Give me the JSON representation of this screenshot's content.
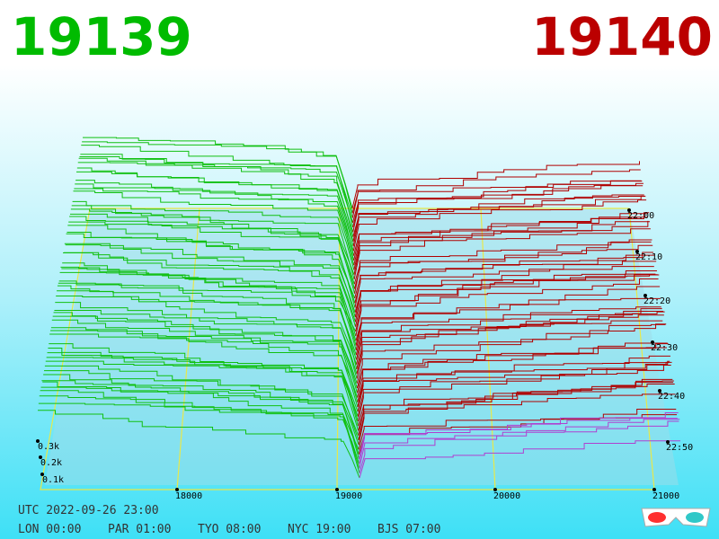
{
  "header": {
    "bid": "19139",
    "ask": "19140"
  },
  "axis": {
    "price_labels": [
      "18000",
      "19000",
      "20000",
      "21000"
    ],
    "depth_labels": [
      "0.3k",
      "0.2k",
      "0.1k"
    ],
    "time_labels": [
      "22:00",
      "22:10",
      "22:20",
      "22:30",
      "22:40",
      "22:50"
    ]
  },
  "footer": {
    "utc": "UTC 2022-09-26 23:00",
    "cities": [
      "LON 00:00",
      "PAR 01:00",
      "TYO 08:00",
      "NYC 19:00",
      "BJS 07:00"
    ]
  }
}
